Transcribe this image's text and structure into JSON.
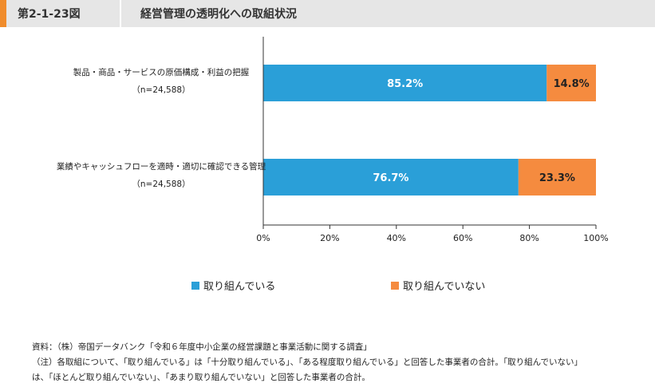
{
  "header": {
    "figure_number": "第2-1-23図",
    "title": "経営管理の透明化への取組状況"
  },
  "colors": {
    "doing": "#2a9fd8",
    "not_doing": "#f58b3f",
    "accent": "#f08c2c",
    "header_bg": "#e6e6e6"
  },
  "chart_data": {
    "type": "bar",
    "orientation": "horizontal",
    "stacked": true,
    "categories": [
      "製品・商品・サービスの原価構成・利益の把握",
      "業績やキャッシュフローを適時・適切に確認できる管理"
    ],
    "category_sub_labels": [
      "（n=24,588）",
      "（n=24,588）"
    ],
    "series": [
      {
        "name": "取り組んでいる",
        "values": [
          85.2,
          76.7
        ],
        "labels": [
          "85.2%",
          "76.7%"
        ]
      },
      {
        "name": "取り組んでいない",
        "values": [
          14.8,
          23.3
        ],
        "labels": [
          "14.8%",
          "23.3%"
        ]
      }
    ],
    "x_ticks": [
      "0%",
      "20%",
      "40%",
      "60%",
      "80%",
      "100%"
    ],
    "xlim": [
      0,
      100
    ],
    "grid": false,
    "legend_position": "bottom"
  },
  "notes": {
    "source": "資料：（株）帝国データバンク「令和６年度中小企業の経営課題と事業活動に関する調査」",
    "note_line1": "（注）各取組について、「取り組んでいる」は「十分取り組んでいる」、「ある程度取り組んでいる」と回答した事業者の合計。「取り組んでいない」",
    "note_line2": "は、「ほとんど取り組んでいない」、「あまり取り組んでいない」と回答した事業者の合計。"
  }
}
